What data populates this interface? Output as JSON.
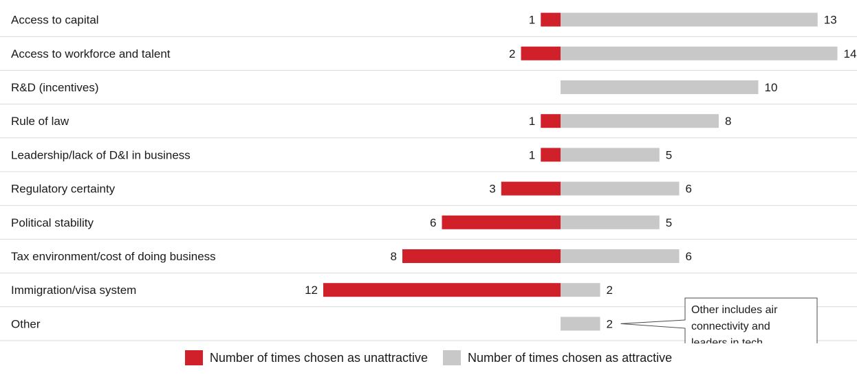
{
  "chart_data": {
    "type": "bar",
    "orientation": "horizontal-diverging",
    "categories": [
      "Access to capital",
      "Access to workforce and talent",
      "R&D (incentives)",
      "Rule of law",
      "Leadership/lack of D&I in business",
      "Regulatory certainty",
      "Political stability",
      "Tax environment/cost of doing business",
      "Immigration/visa system",
      "Other"
    ],
    "series": [
      {
        "name": "Number of times chosen as unattractive",
        "color": "#d0202a",
        "direction": "left",
        "values": [
          1,
          2,
          0,
          1,
          1,
          3,
          6,
          8,
          12,
          0
        ]
      },
      {
        "name": "Number of times chosen as attractive",
        "color": "#c8c8c8",
        "direction": "right",
        "values": [
          13,
          14,
          10,
          8,
          5,
          6,
          5,
          6,
          2,
          2
        ]
      }
    ],
    "grid": "horizontal-row-separators",
    "gridline_color": "#d9d9d9",
    "legend_position": "bottom-center",
    "annotation": {
      "target_category": "Other",
      "lines": [
        "Other includes air",
        "connectivity and",
        "leaders in tech"
      ]
    }
  }
}
